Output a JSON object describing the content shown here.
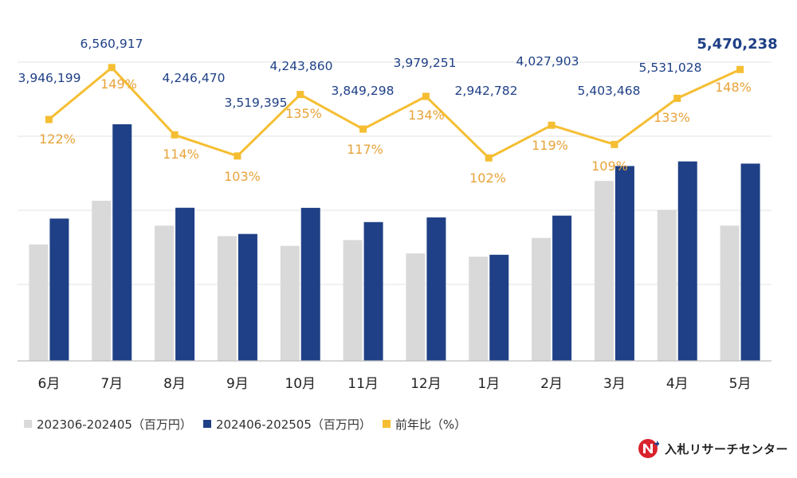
{
  "chart_data": {
    "type": "bar+line",
    "categories": [
      "6月",
      "7月",
      "8月",
      "9月",
      "10月",
      "11月",
      "12月",
      "1月",
      "2月",
      "3月",
      "4月",
      "5月"
    ],
    "series": [
      {
        "name": "202306-202405（百万円）",
        "type": "bar",
        "color": "#d9d9d9",
        "values": [
          3230000,
          4440000,
          3750000,
          3460000,
          3190000,
          3350000,
          2980000,
          2890000,
          3410000,
          4990000,
          4190000,
          3750000
        ]
      },
      {
        "name": "202406-202505（百万円）",
        "type": "bar",
        "color": "#1f4086",
        "values": [
          3946199,
          6560917,
          4246470,
          3519395,
          4243860,
          3849298,
          3979251,
          2942782,
          4027903,
          5403468,
          5531028,
          5470238
        ]
      },
      {
        "name": "前年比（%）",
        "type": "line",
        "color": "#f5be32",
        "values": [
          122,
          149,
          114,
          103,
          135,
          117,
          134,
          102,
          119,
          109,
          133,
          148
        ]
      }
    ],
    "value_labels": [
      "3,946,199",
      "6,560,917",
      "4,246,470",
      "3,519,395",
      "4,243,860",
      "3,849,298",
      "3,979,251",
      "2,942,782",
      "4,027,903",
      "5,403,468",
      "5,531,028",
      "5,470,238"
    ],
    "pct_labels": [
      "122%",
      "149%",
      "114%",
      "103%",
      "135%",
      "117%",
      "134%",
      "102%",
      "119%",
      "109%",
      "133%",
      "148%"
    ],
    "bar_ylim": [
      0,
      8240000
    ],
    "line_ylim": [
      -3.6,
      151
    ],
    "grid": true,
    "legend_position": "bottom-left"
  },
  "colors": {
    "bar_prev": "#d9d9d9",
    "bar_curr": "#1f4086",
    "line": "#f5be32",
    "value_label": "#1f4086",
    "pct_label": "#e8a33a",
    "logo_red": "#d9232d"
  },
  "logo": {
    "text": "入札リサーチセンター",
    "icon": "brand-logo-icon"
  }
}
